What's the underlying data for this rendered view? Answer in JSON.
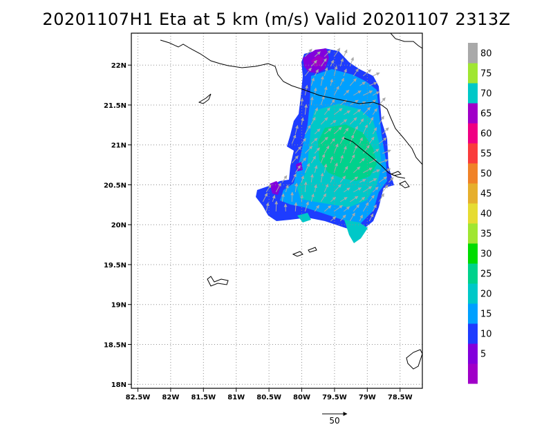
{
  "title": "20201107H1 Eta at 5 km (m/s) Valid 20201107 2313Z",
  "map": {
    "lon_range": [
      -82.6,
      -78.16
    ],
    "lat_range": [
      17.95,
      22.4
    ],
    "lon_ticks": [
      {
        "value": -82.5,
        "label": "82.5W"
      },
      {
        "value": -82.0,
        "label": "82W"
      },
      {
        "value": -81.5,
        "label": "81.5W"
      },
      {
        "value": -81.0,
        "label": "81W"
      },
      {
        "value": -80.5,
        "label": "80.5W"
      },
      {
        "value": -80.0,
        "label": "80W"
      },
      {
        "value": -79.5,
        "label": "79.5W"
      },
      {
        "value": -79.0,
        "label": "79W"
      },
      {
        "value": -78.5,
        "label": "78.5W"
      }
    ],
    "lat_ticks": [
      {
        "value": 22.0,
        "label": "22N"
      },
      {
        "value": 21.5,
        "label": "21.5N"
      },
      {
        "value": 21.0,
        "label": "21N"
      },
      {
        "value": 20.5,
        "label": "20.5N"
      },
      {
        "value": 20.0,
        "label": "20N"
      },
      {
        "value": 19.5,
        "label": "19.5N"
      },
      {
        "value": 19.0,
        "label": "19N"
      },
      {
        "value": 18.5,
        "label": "18.5N"
      },
      {
        "value": 18.0,
        "label": "18N"
      }
    ],
    "grid": "dotted",
    "coastline_color": "#000000",
    "vector_color": "#a9a9a9"
  },
  "colorbar": {
    "levels": [
      {
        "label": "",
        "color": "#a000c8"
      },
      {
        "label": "5",
        "color": "#8200dc"
      },
      {
        "label": "10",
        "color": "#1e3cff"
      },
      {
        "label": "15",
        "color": "#00a0ff"
      },
      {
        "label": "20",
        "color": "#00c8c8"
      },
      {
        "label": "25",
        "color": "#00d28c"
      },
      {
        "label": "30",
        "color": "#00dc00"
      },
      {
        "label": "35",
        "color": "#a0e632"
      },
      {
        "label": "40",
        "color": "#e6dc32"
      },
      {
        "label": "45",
        "color": "#e6af2d"
      },
      {
        "label": "50",
        "color": "#f08228"
      },
      {
        "label": "55",
        "color": "#fa3c3c"
      },
      {
        "label": "60",
        "color": "#f00082"
      },
      {
        "label": "65",
        "color": "#a000c8"
      },
      {
        "label": "70",
        "color": "#00c8c8"
      },
      {
        "label": "75",
        "color": "#a0e632"
      },
      {
        "label": "80",
        "color": "#a9a9a9"
      }
    ]
  },
  "reference_vector": {
    "label": "50"
  }
}
